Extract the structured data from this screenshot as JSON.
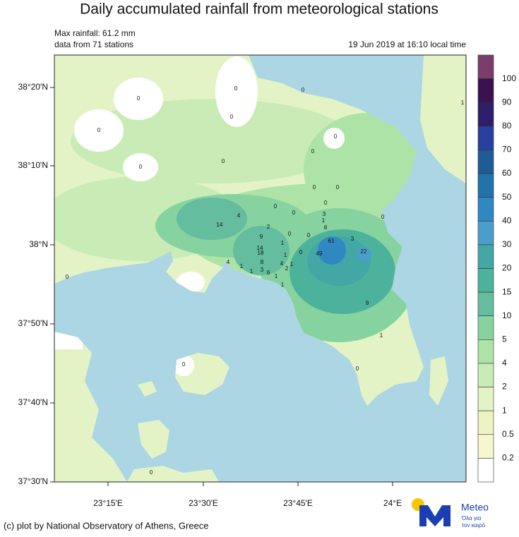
{
  "title": "Daily accumulated rainfall from meteorological stations",
  "info": {
    "max": "Max rainfall: 61.2 mm",
    "stations": "data from 71 stations",
    "time": "19 Jun 2019 at 16:10 local time"
  },
  "lat_ticks": [
    "38°20'N",
    "38°10'N",
    "38°N",
    "37°50'N",
    "37°40'N",
    "37°30'N"
  ],
  "lon_ticks": [
    "23°15'E",
    "23°30'E",
    "23°45'E",
    "24°E"
  ],
  "colorbar": {
    "levels": [
      100,
      90,
      80,
      70,
      60,
      50,
      40,
      30,
      20,
      15,
      10,
      5,
      4,
      2,
      1,
      0.5,
      0.2
    ],
    "colors": [
      "#7a3d6c",
      "#3a1250",
      "#2e1f6a",
      "#2840a0",
      "#1f5c96",
      "#2272ac",
      "#2f88c2",
      "#4a9fca",
      "#43a7a6",
      "#4db29c",
      "#63bd9e",
      "#86d3a0",
      "#ade3a6",
      "#c9ecb6",
      "#e3f3c6",
      "#eef3c2",
      "#f6f6cf",
      "#ffffff"
    ]
  },
  "stations": [
    0,
    0,
    0,
    0,
    0,
    0,
    0,
    0,
    0,
    0,
    0,
    0,
    0,
    0,
    3,
    1,
    8,
    4,
    14,
    2,
    9,
    0,
    0,
    61,
    3,
    14,
    18,
    1,
    0,
    49,
    22,
    1,
    8,
    4,
    1,
    3,
    4,
    1,
    2,
    6,
    1,
    1,
    1,
    0,
    9,
    1,
    0,
    0,
    0,
    0,
    1
  ],
  "footer": "(c) plot by National Observatory of Athens, Greece",
  "logo": {
    "name": "Meteo",
    "tagline1": "Όλα για",
    "tagline2": "τον καιρό"
  }
}
